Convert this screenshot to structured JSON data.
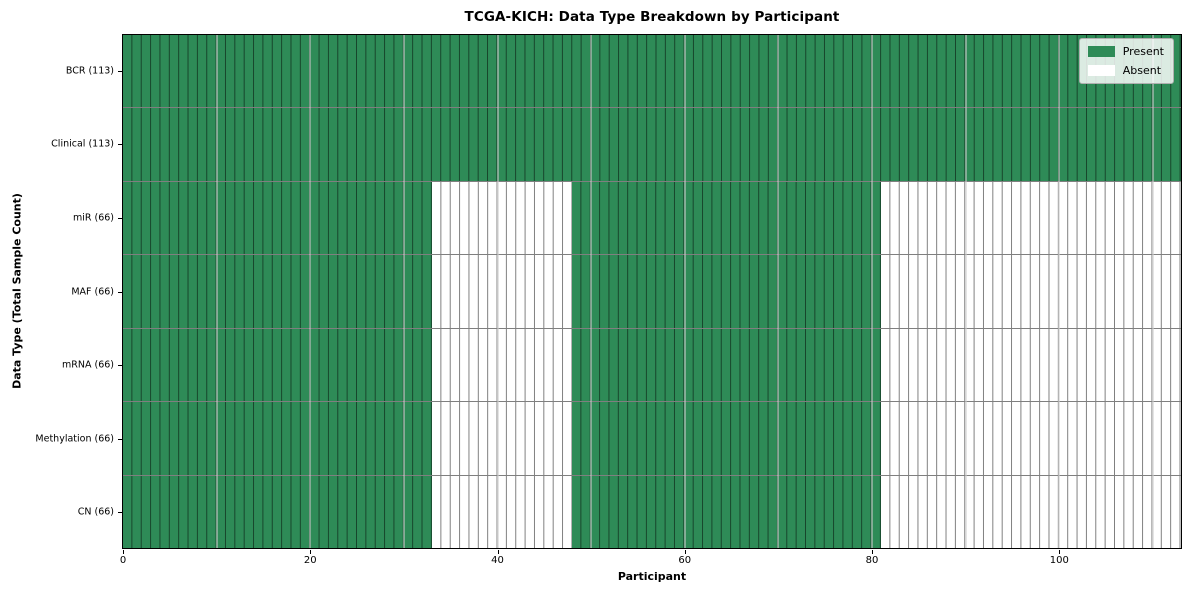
{
  "colors": {
    "present": "#2e8b57",
    "absent": "#ffffff",
    "cell_border": "rgba(0,0,0,0.5)",
    "grid_line": "rgba(205,205,205,0.55)",
    "spine": "#000000",
    "legend_border": "#b0b0b0"
  },
  "chart_data": {
    "type": "heatmap",
    "title": "TCGA-KICH: Data Type Breakdown by Participant",
    "xlabel": "Participant",
    "ylabel": "Data Type (Total Sample Count)",
    "x_range": [
      0,
      113
    ],
    "x_ticks": [
      0,
      20,
      40,
      60,
      80,
      100
    ],
    "grid_lines": [
      10,
      20,
      30,
      40,
      50,
      60,
      70,
      80,
      90,
      100,
      110
    ],
    "grid": "on",
    "legend_position": "upper right",
    "legend": [
      {
        "label": "Present",
        "state": "present",
        "color": "#2e8b57"
      },
      {
        "label": "Absent",
        "state": "absent",
        "color": "#ffffff"
      }
    ],
    "rows": [
      {
        "label": "BCR (113)",
        "name": "BCR",
        "total": 113,
        "segments": [
          {
            "state": "present",
            "start": 0,
            "end": 113
          }
        ]
      },
      {
        "label": "Clinical (113)",
        "name": "Clinical",
        "total": 113,
        "segments": [
          {
            "state": "present",
            "start": 0,
            "end": 113
          }
        ]
      },
      {
        "label": "miR (66)",
        "name": "miR",
        "total": 66,
        "segments": [
          {
            "state": "present",
            "start": 0,
            "end": 33
          },
          {
            "state": "absent",
            "start": 33,
            "end": 48
          },
          {
            "state": "present",
            "start": 48,
            "end": 81
          },
          {
            "state": "absent",
            "start": 81,
            "end": 113
          }
        ]
      },
      {
        "label": "MAF (66)",
        "name": "MAF",
        "total": 66,
        "segments": [
          {
            "state": "present",
            "start": 0,
            "end": 33
          },
          {
            "state": "absent",
            "start": 33,
            "end": 48
          },
          {
            "state": "present",
            "start": 48,
            "end": 81
          },
          {
            "state": "absent",
            "start": 81,
            "end": 113
          }
        ]
      },
      {
        "label": "mRNA (66)",
        "name": "mRNA",
        "total": 66,
        "segments": [
          {
            "state": "present",
            "start": 0,
            "end": 33
          },
          {
            "state": "absent",
            "start": 33,
            "end": 48
          },
          {
            "state": "present",
            "start": 48,
            "end": 81
          },
          {
            "state": "absent",
            "start": 81,
            "end": 113
          }
        ]
      },
      {
        "label": "Methylation (66)",
        "name": "Methylation",
        "total": 66,
        "segments": [
          {
            "state": "present",
            "start": 0,
            "end": 33
          },
          {
            "state": "absent",
            "start": 33,
            "end": 48
          },
          {
            "state": "present",
            "start": 48,
            "end": 81
          },
          {
            "state": "absent",
            "start": 81,
            "end": 113
          }
        ]
      },
      {
        "label": "CN (66)",
        "name": "CN",
        "total": 66,
        "segments": [
          {
            "state": "present",
            "start": 0,
            "end": 33
          },
          {
            "state": "absent",
            "start": 33,
            "end": 48
          },
          {
            "state": "present",
            "start": 48,
            "end": 81
          },
          {
            "state": "absent",
            "start": 81,
            "end": 113
          }
        ]
      }
    ]
  }
}
